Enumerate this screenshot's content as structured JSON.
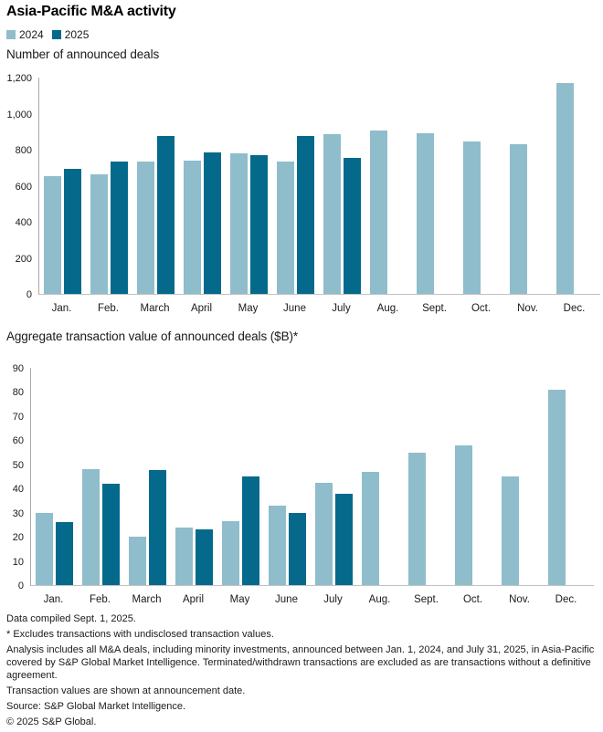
{
  "title": "Asia-Pacific M&A activity",
  "legend": {
    "items": [
      {
        "label": "2024",
        "color": "#8FBDCB"
      },
      {
        "label": "2025",
        "color": "#05698C"
      }
    ]
  },
  "chart_data": [
    {
      "type": "bar",
      "title": "Number of announced deals",
      "categories": [
        "Jan.",
        "Feb.",
        "March",
        "April",
        "May",
        "June",
        "July",
        "Aug.",
        "Sept.",
        "Oct.",
        "Nov.",
        "Dec."
      ],
      "series": [
        {
          "name": "2024",
          "color": "#8FBDCB",
          "values": [
            655,
            665,
            735,
            740,
            780,
            735,
            885,
            905,
            890,
            845,
            830,
            1170
          ]
        },
        {
          "name": "2025",
          "color": "#05698C",
          "values": [
            695,
            735,
            875,
            785,
            770,
            875,
            755,
            null,
            null,
            null,
            null,
            null
          ]
        }
      ],
      "ylim": [
        0,
        1200
      ],
      "ytick_labels": [
        "1,200",
        "1,000",
        "800",
        "600",
        "400",
        "200",
        "0"
      ],
      "xlabel": "",
      "ylabel": "",
      "grid": false,
      "legend_position": "top"
    },
    {
      "type": "bar",
      "title": "Aggregate transaction value of announced deals ($B)*",
      "categories": [
        "Jan.",
        "Feb.",
        "March",
        "April",
        "May",
        "June",
        "July",
        "Aug.",
        "Sept.",
        "Oct.",
        "Nov.",
        "Dec."
      ],
      "series": [
        {
          "name": "2024",
          "color": "#8FBDCB",
          "values": [
            30,
            48,
            20,
            24,
            26.5,
            33,
            42.5,
            47,
            55,
            58,
            45,
            81
          ]
        },
        {
          "name": "2025",
          "color": "#05698C",
          "values": [
            26,
            42,
            47.5,
            23,
            45,
            30,
            38,
            null,
            null,
            null,
            null,
            null
          ]
        }
      ],
      "ylim": [
        0,
        90
      ],
      "ytick_labels": [
        "90",
        "80",
        "70",
        "60",
        "50",
        "40",
        "30",
        "20",
        "10",
        "0"
      ],
      "xlabel": "",
      "ylabel": "",
      "grid": false,
      "legend_position": "top"
    }
  ],
  "footnotes": [
    "Data compiled Sept. 1, 2025.",
    "* Excludes transactions with undisclosed transaction values.",
    "Analysis includes all M&A deals, including minority investments, announced between Jan. 1, 2024, and July 31, 2025, in Asia-Pacific covered by S&P Global Market Intelligence. Terminated/withdrawn transactions are excluded as are transactions without a definitive agreement.",
    "Transaction values are shown at announcement date.",
    "Source: S&P Global Market Intelligence.",
    "© 2025 S&P Global."
  ],
  "colors": {
    "series_2024": "#8FBDCB",
    "series_2025": "#05698C",
    "y_axis_line": "#A9A9A9",
    "x_axis_line": "#C2C2C2",
    "text": "#1A1A1A"
  }
}
